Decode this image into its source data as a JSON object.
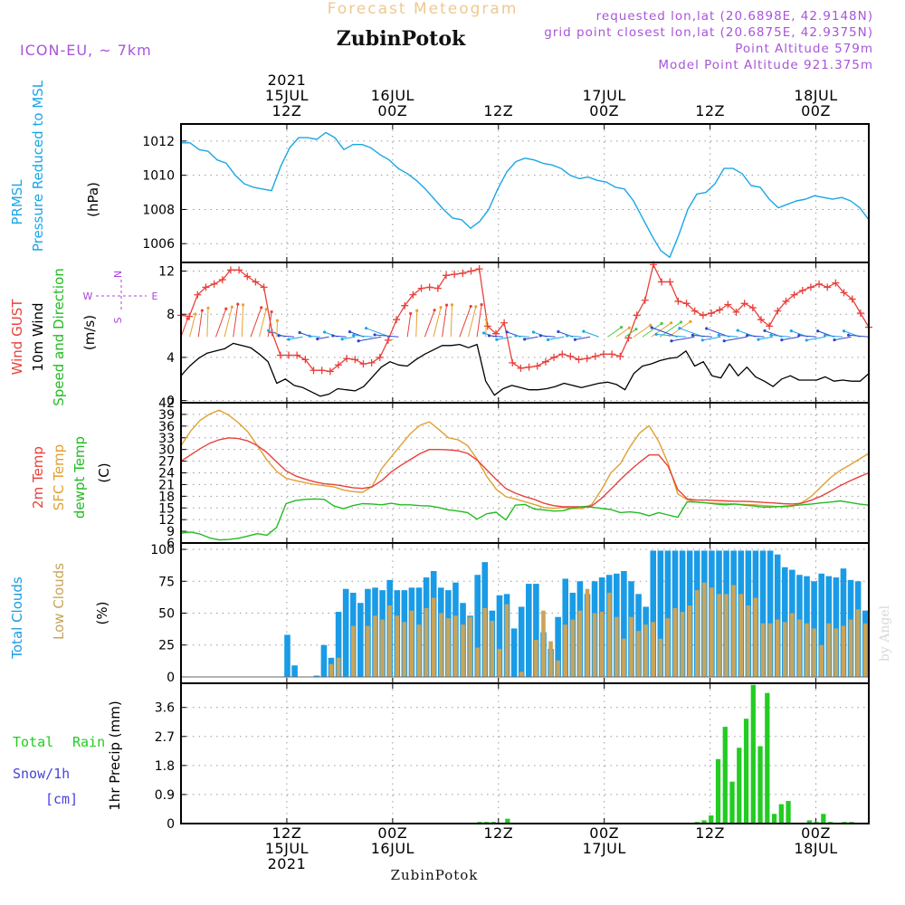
{
  "header": {
    "forecast_title": "Forecast Meteogram",
    "location": "ZubinPotok",
    "model": "ICON-EU, ~ 7km",
    "requested": "requested lon,lat (20.6898E, 42.9148N)",
    "closest": "grid point closest lon,lat (20.6875E, 42.9375N)",
    "point_altitude": "Point Altitude 579m",
    "model_altitude": "Model Point Altitude 921.375m",
    "footer_location": "ZubinPotok",
    "watermark": "by Angel"
  },
  "time_axis": {
    "top_labels": [
      {
        "t": 12,
        "lines": [
          "2021",
          "15JUL",
          "12Z"
        ]
      },
      {
        "t": 24,
        "lines": [
          "16JUL",
          "00Z"
        ]
      },
      {
        "t": 36,
        "lines": [
          "12Z"
        ]
      },
      {
        "t": 48,
        "lines": [
          "17JUL",
          "00Z"
        ]
      },
      {
        "t": 60,
        "lines": [
          "12Z"
        ]
      },
      {
        "t": 72,
        "lines": [
          "18JUL",
          "00Z"
        ]
      }
    ],
    "bottom_labels": [
      {
        "t": 12,
        "lines": [
          "12Z",
          "15JUL",
          "2021"
        ]
      },
      {
        "t": 24,
        "lines": [
          "00Z",
          "16JUL"
        ]
      },
      {
        "t": 36,
        "lines": [
          "12Z"
        ]
      },
      {
        "t": 48,
        "lines": [
          "00Z",
          "17JUL"
        ]
      },
      {
        "t": 60,
        "lines": [
          "12Z"
        ]
      },
      {
        "t": 72,
        "lines": [
          "00Z",
          "18JUL"
        ]
      }
    ]
  },
  "colors": {
    "pressure": "#1aa6e6",
    "gust": "#e8413c",
    "wind": "#000000",
    "direction_label": "#22bb22",
    "compass": "#aa44dd",
    "temp2m": "#e8413c",
    "sfc": "#e0a030",
    "dewpt": "#22bb22",
    "total_clouds": "#1a9be6",
    "low_clouds": "#c8a45a",
    "rain": "#22cc22",
    "snow": "#4444dd",
    "header_purple": "#a855d8",
    "forecast_title": "#f0c890"
  },
  "chart_data": [
    {
      "type": "line",
      "panel": "pressure",
      "ylabel_lines": [
        "PRMSL",
        "Pressure Reduced to MSL"
      ],
      "unit": "(hPa)",
      "yticks": [
        1006,
        1008,
        1010,
        1012
      ],
      "ylim": [
        1004.9,
        1013.0
      ],
      "series": [
        {
          "name": "PRMSL",
          "values": [
            1011.9,
            1011.9,
            1011.5,
            1011.4,
            1010.9,
            1010.7,
            1010.0,
            1009.5,
            1009.3,
            1009.2,
            1009.1,
            1010.5,
            1011.6,
            1012.2,
            1012.2,
            1012.1,
            1012.5,
            1012.2,
            1011.5,
            1011.8,
            1011.8,
            1011.6,
            1011.2,
            1010.9,
            1010.4,
            1010.1,
            1009.7,
            1009.2,
            1008.6,
            1008.0,
            1007.5,
            1007.4,
            1006.9,
            1007.3,
            1008.0,
            1009.2,
            1010.2,
            1010.8,
            1011.0,
            1010.9,
            1010.7,
            1010.6,
            1010.4,
            1010.0,
            1009.8,
            1009.9,
            1009.7,
            1009.6,
            1009.3,
            1009.2,
            1008.5,
            1007.5,
            1006.5,
            1005.6,
            1005.2,
            1006.5,
            1008.0,
            1008.9,
            1009.0,
            1009.5,
            1010.4,
            1010.4,
            1010.1,
            1009.4,
            1009.3,
            1008.6,
            1008.1,
            1008.3,
            1008.5,
            1008.6,
            1008.8,
            1008.7,
            1008.6,
            1008.7,
            1008.5,
            1008.1,
            1007.4
          ]
        }
      ]
    },
    {
      "type": "line",
      "panel": "wind",
      "ylabel_lines": [
        "Wind GUST",
        "10m Wind",
        "Speed and Direction"
      ],
      "unit": "(m/s)",
      "compass": {
        "n": "N",
        "s": "S",
        "w": "W",
        "e": "E"
      },
      "yticks": [
        0,
        4,
        8,
        12
      ],
      "ylim": [
        -0.2,
        12.8
      ],
      "series": [
        {
          "name": "Wind GUST",
          "values": [
            7.9,
            7.8,
            9.8,
            10.5,
            10.8,
            11.2,
            12.1,
            12.1,
            11.5,
            11.0,
            10.5,
            6.3,
            4.2,
            4.2,
            4.2,
            3.8,
            2.8,
            2.8,
            2.7,
            3.3,
            3.9,
            3.8,
            3.4,
            3.5,
            4.0,
            5.6,
            7.5,
            8.8,
            9.8,
            10.4,
            10.5,
            10.4,
            11.6,
            11.7,
            11.8,
            12.0,
            12.2,
            6.9,
            6.2,
            7.2,
            3.5,
            3.0,
            3.1,
            3.2,
            3.6,
            4.0,
            4.3,
            4.1,
            3.8,
            3.9,
            4.1,
            4.3,
            4.3,
            4.1,
            5.8,
            7.9,
            9.3,
            12.6,
            11.0,
            11.0,
            9.2,
            9.0,
            8.3,
            7.9,
            8.1,
            8.4,
            8.9,
            8.2,
            9.0,
            8.6,
            7.5,
            6.9,
            8.3,
            9.2,
            9.8,
            10.2,
            10.5,
            10.8,
            10.5,
            10.9,
            10.0,
            9.4,
            8.1,
            6.8
          ]
        },
        {
          "name": "10m Wind",
          "values": [
            2.3,
            3.2,
            3.9,
            4.4,
            4.6,
            4.8,
            5.3,
            5.1,
            4.9,
            4.3,
            3.6,
            1.6,
            2.0,
            1.4,
            1.2,
            0.8,
            0.4,
            0.6,
            1.1,
            1.0,
            0.9,
            1.3,
            2.2,
            3.1,
            3.6,
            3.3,
            3.2,
            3.8,
            4.3,
            4.7,
            5.1,
            5.1,
            5.2,
            4.9,
            5.2,
            1.8,
            0.5,
            1.1,
            1.4,
            1.2,
            1.0,
            1.0,
            1.1,
            1.3,
            1.6,
            1.4,
            1.2,
            1.4,
            1.6,
            1.7,
            1.5,
            1.0,
            2.5,
            3.2,
            3.4,
            3.7,
            3.9,
            4.0,
            4.6,
            3.2,
            3.6,
            2.3,
            2.1,
            3.4,
            2.3,
            3.1,
            2.2,
            1.8,
            1.3,
            2.0,
            2.3,
            1.9,
            1.9,
            1.9,
            2.2,
            1.8,
            1.9,
            1.8,
            1.8,
            2.5
          ]
        }
      ],
      "dir_label": "Speed and Direction"
    },
    {
      "type": "line",
      "panel": "temperature",
      "ylabel_lines": [
        "2m Temp",
        "SFC Temp",
        "dewpt Temp"
      ],
      "unit": "(C)",
      "yticks": [
        6,
        9,
        12,
        15,
        18,
        21,
        24,
        27,
        30,
        33,
        36,
        39,
        42
      ],
      "ylim": [
        6,
        42
      ],
      "series": [
        {
          "name": "2m Temp",
          "values": [
            27.0,
            28.6,
            30.2,
            31.6,
            32.5,
            33.0,
            32.8,
            32.2,
            31.0,
            29.2,
            26.8,
            24.5,
            23.2,
            22.4,
            21.7,
            21.2,
            21.0,
            20.6,
            20.2,
            20.0,
            20.4,
            22.0,
            24.2,
            25.9,
            27.4,
            28.9,
            30.0,
            30.0,
            29.9,
            29.7,
            29.0,
            27.3,
            24.8,
            22.3,
            20.0,
            18.8,
            17.9,
            17.2,
            16.2,
            15.6,
            15.3,
            15.3,
            15.3,
            15.5,
            17.4,
            19.8,
            22.3,
            24.6,
            26.7,
            28.6,
            28.6,
            25.7,
            19.7,
            17.3,
            17.0,
            17.0,
            16.9,
            16.8,
            16.7,
            16.7,
            16.6,
            16.4,
            16.3,
            16.1,
            16.0,
            16.2,
            17.0,
            18.0,
            19.3,
            20.7,
            21.9,
            23.0,
            24.0
          ]
        },
        {
          "name": "SFC Temp",
          "values": [
            31.0,
            34.7,
            37.5,
            39.1,
            40.1,
            38.8,
            36.9,
            34.5,
            31.0,
            27.3,
            24.4,
            22.6,
            22.0,
            21.5,
            21.0,
            20.7,
            20.4,
            19.6,
            19.2,
            19.0,
            20.5,
            25.1,
            28.1,
            31.1,
            34.0,
            36.2,
            37.1,
            35.1,
            33.0,
            32.5,
            31.0,
            27.5,
            23.1,
            19.8,
            17.9,
            17.3,
            16.6,
            15.9,
            15.1,
            14.9,
            15.1,
            14.9,
            14.8,
            15.9,
            19.6,
            24.0,
            26.4,
            30.7,
            34.2,
            36.1,
            32.1,
            26.4,
            18.6,
            17.1,
            16.5,
            16.3,
            16.2,
            16.1,
            16.0,
            15.9,
            15.8,
            15.6,
            15.4,
            15.3,
            15.4,
            16.4,
            18.0,
            20.4,
            22.8,
            24.6,
            26.0,
            27.5,
            29.0
          ]
        },
        {
          "name": "dewpt Temp",
          "values": [
            8.5,
            8.8,
            8.3,
            7.3,
            6.8,
            6.9,
            7.2,
            7.8,
            8.4,
            8.0,
            10.0,
            16.1,
            16.9,
            17.2,
            17.3,
            17.2,
            15.5,
            14.8,
            15.6,
            16.1,
            16.0,
            15.8,
            16.2,
            15.8,
            15.8,
            15.6,
            15.5,
            15.1,
            14.5,
            14.2,
            13.8,
            12.1,
            13.5,
            13.9,
            11.9,
            15.7,
            15.9,
            14.7,
            14.5,
            14.2,
            14.3,
            15.0,
            15.3,
            15.2,
            14.9,
            14.6,
            13.8,
            14.0,
            13.7,
            13.0,
            13.8,
            13.2,
            12.6,
            16.6,
            16.5,
            16.3,
            16.0,
            15.8,
            16.0,
            15.7,
            15.5,
            15.2,
            15.3,
            15.4,
            15.6,
            15.8,
            16.0,
            16.3,
            16.5,
            16.8,
            16.4,
            16.0,
            15.7
          ]
        }
      ]
    },
    {
      "type": "bar",
      "panel": "clouds",
      "ylabel_lines": [
        "Total Clouds",
        "Low Clouds"
      ],
      "unit": "(%)",
      "yticks": [
        0,
        25,
        50,
        75,
        100
      ],
      "ylim": [
        -5,
        105
      ],
      "series": [
        {
          "name": "Total Clouds",
          "values": [
            0,
            0,
            0,
            0,
            0,
            0,
            0,
            0,
            0,
            0,
            0,
            0,
            0,
            0,
            33,
            9,
            0,
            0,
            1,
            25,
            15,
            51,
            69,
            66,
            58,
            69,
            70,
            68,
            76,
            68,
            68,
            70,
            70,
            78,
            83,
            70,
            68,
            74,
            58,
            48,
            80,
            90,
            52,
            64,
            65,
            38,
            55,
            73,
            73,
            35,
            22,
            47,
            77,
            66,
            75,
            65,
            75,
            78,
            80,
            81,
            83,
            75,
            65,
            55,
            99,
            99,
            99,
            99,
            99,
            99,
            99,
            99,
            99,
            99,
            99,
            99,
            99,
            99,
            99,
            99,
            99,
            96,
            86,
            84,
            80,
            79,
            75,
            81,
            79,
            78,
            85,
            76,
            75,
            52
          ]
        },
        {
          "name": "Low Clouds",
          "values": [
            0,
            0,
            0,
            0,
            0,
            0,
            0,
            0,
            0,
            0,
            0,
            0,
            0,
            0,
            0,
            0,
            0,
            0,
            0,
            0,
            10,
            15,
            0,
            40,
            0,
            40,
            48,
            45,
            56,
            48,
            43,
            52,
            41,
            54,
            62,
            50,
            46,
            48,
            41,
            47,
            23,
            54,
            44,
            22,
            57,
            0,
            4,
            0,
            29,
            52,
            28,
            13,
            41,
            45,
            52,
            69,
            50,
            51,
            66,
            47,
            30,
            47,
            36,
            41,
            43,
            30,
            46,
            54,
            51,
            56,
            68,
            74,
            70,
            65,
            65,
            72,
            65,
            56,
            62,
            42,
            42,
            45,
            43,
            50,
            45,
            42,
            38,
            25,
            42,
            38,
            40,
            45,
            53,
            42
          ]
        }
      ]
    },
    {
      "type": "bar",
      "panel": "precip",
      "ylabel_lines": [
        "1hr Precip (mm)"
      ],
      "side_labels": {
        "rain": "Total Rain",
        "snow": "Snow/1h",
        "snow_unit": "[cm]"
      },
      "yticks": [
        0,
        0.9,
        1.8,
        2.7,
        3.6
      ],
      "ylim": [
        0,
        4.35
      ],
      "series": [
        {
          "name": "Total Rain",
          "values": [
            0,
            0,
            0,
            0,
            0,
            0,
            0,
            0,
            0,
            0,
            0,
            0,
            0,
            0,
            0,
            0,
            0,
            0,
            0,
            0,
            0,
            0,
            0,
            0,
            0,
            0,
            0,
            0,
            0,
            0,
            0,
            0,
            0,
            0,
            0,
            0,
            0,
            0,
            0,
            0,
            0,
            0,
            0.05,
            0.05,
            0.05,
            0,
            0.15,
            0,
            0,
            0,
            0,
            0,
            0,
            0,
            0,
            0,
            0,
            0,
            0,
            0,
            0,
            0,
            0,
            0,
            0,
            0,
            0,
            0,
            0,
            0,
            0,
            0,
            0,
            0.05,
            0.1,
            0.25,
            2.0,
            3.0,
            1.3,
            2.35,
            3.25,
            4.3,
            2.4,
            4.05,
            0.3,
            0.6,
            0.7,
            0,
            0,
            0.1,
            0.05,
            0.3,
            0.05,
            0,
            0.05,
            0.05,
            0,
            0
          ]
        },
        {
          "name": "Snow/1h",
          "values": []
        }
      ]
    }
  ]
}
